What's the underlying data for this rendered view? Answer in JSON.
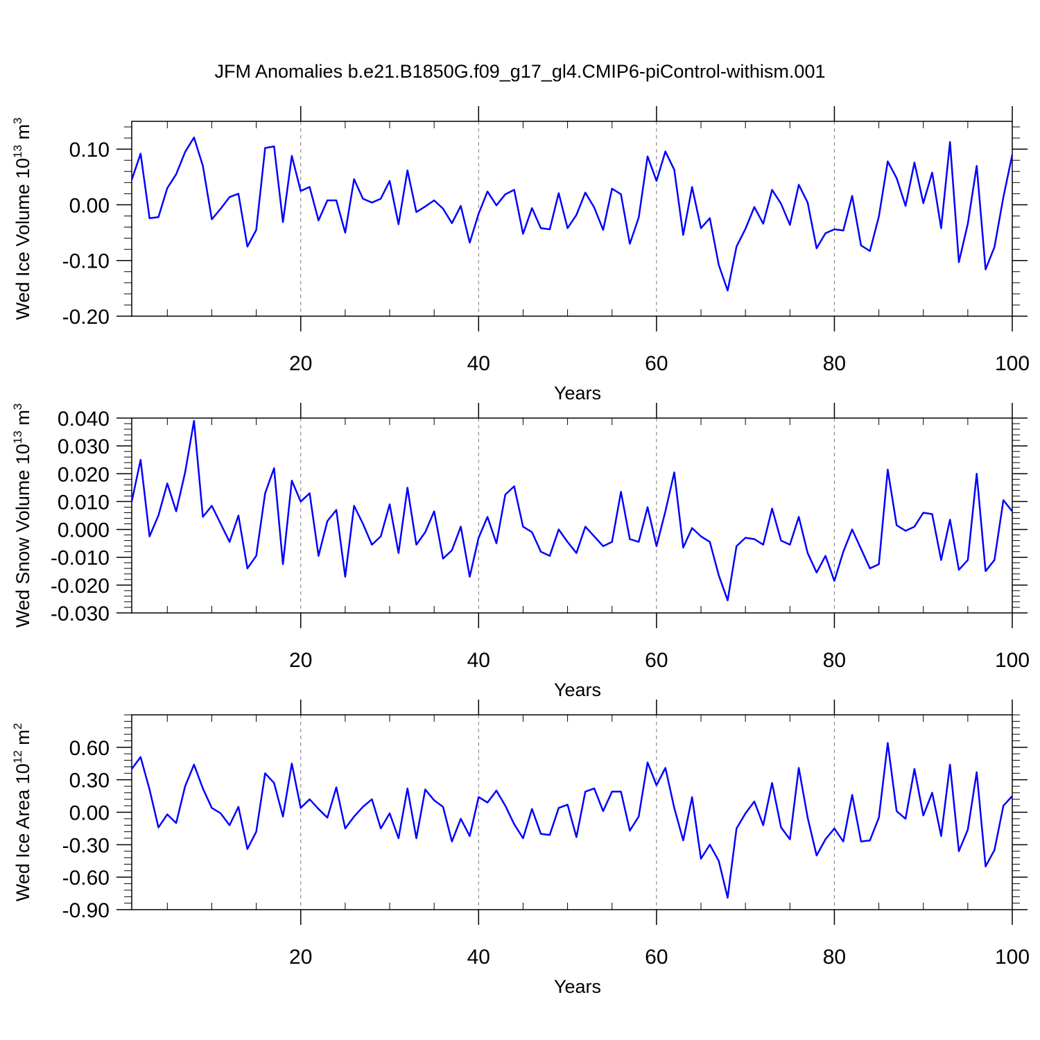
{
  "figure": {
    "title": "JFM Anomalies b.e21.B1850G.f09_g17_gl4.CMIP6-piControl-withism.001"
  },
  "chart_data": [
    {
      "type": "line",
      "xlabel": "Years",
      "ylabel": {
        "pre": "Wed Ice Volume 10",
        "exp": "13",
        "mid": " m",
        "unit_exp": "3"
      },
      "xlim": [
        1,
        100
      ],
      "ylim": [
        -0.2,
        0.15
      ],
      "xticks": [
        20,
        40,
        60,
        80,
        100
      ],
      "xtick_labels": [
        "20",
        "40",
        "60",
        "80",
        "100"
      ],
      "yticks": [
        -0.2,
        -0.1,
        0.0,
        0.1
      ],
      "ytick_labels": [
        "-0.20",
        "-0.10",
        "0.00",
        "0.10"
      ],
      "grid": "vertical dashed at x ticks",
      "line_color": "#0000ff",
      "x": [
        1,
        2,
        3,
        4,
        5,
        6,
        7,
        8,
        9,
        10,
        11,
        12,
        13,
        14,
        15,
        16,
        17,
        18,
        19,
        20,
        21,
        22,
        23,
        24,
        25,
        26,
        27,
        28,
        29,
        30,
        31,
        32,
        33,
        34,
        35,
        36,
        37,
        38,
        39,
        40,
        41,
        42,
        43,
        44,
        45,
        46,
        47,
        48,
        49,
        50,
        51,
        52,
        53,
        54,
        55,
        56,
        57,
        58,
        59,
        60,
        61,
        62,
        63,
        64,
        65,
        66,
        67,
        68,
        69,
        70,
        71,
        72,
        73,
        74,
        75,
        76,
        77,
        78,
        79,
        80,
        81,
        82,
        83,
        84,
        85,
        86,
        87,
        88,
        89,
        90,
        91,
        92,
        93,
        94,
        95,
        96,
        97,
        98,
        99,
        100
      ],
      "values": [
        0.045,
        0.092,
        -0.024,
        -0.022,
        0.03,
        0.055,
        0.095,
        0.121,
        0.07,
        -0.026,
        -0.007,
        0.014,
        0.02,
        -0.075,
        -0.045,
        0.102,
        0.105,
        -0.031,
        0.088,
        0.025,
        0.032,
        -0.028,
        0.008,
        0.008,
        -0.05,
        0.046,
        0.011,
        0.004,
        0.011,
        0.043,
        -0.035,
        0.062,
        -0.013,
        -0.003,
        0.008,
        -0.007,
        -0.033,
        -0.002,
        -0.068,
        -0.016,
        0.024,
        -0.001,
        0.019,
        0.027,
        -0.052,
        -0.006,
        -0.042,
        -0.044,
        0.021,
        -0.042,
        -0.018,
        0.022,
        -0.005,
        -0.045,
        0.029,
        0.019,
        -0.07,
        -0.023,
        0.087,
        0.043,
        0.096,
        0.063,
        -0.054,
        0.032,
        -0.042,
        -0.024,
        -0.108,
        -0.154,
        -0.075,
        -0.043,
        -0.004,
        -0.034,
        0.027,
        0.002,
        -0.036,
        0.036,
        0.004,
        -0.078,
        -0.051,
        -0.044,
        -0.046,
        0.016,
        -0.073,
        -0.083,
        -0.021,
        0.078,
        0.048,
        -0.002,
        0.076,
        0.003,
        0.058,
        -0.042,
        0.113,
        -0.103,
        -0.034,
        0.07,
        -0.116,
        -0.076,
        0.014,
        0.09
      ]
    },
    {
      "type": "line",
      "xlabel": "Years",
      "ylabel": {
        "pre": "Wed Snow Volume 10",
        "exp": "13",
        "mid": " m",
        "unit_exp": "3"
      },
      "xlim": [
        1,
        100
      ],
      "ylim": [
        -0.03,
        0.04
      ],
      "xticks": [
        20,
        40,
        60,
        80,
        100
      ],
      "xtick_labels": [
        "20",
        "40",
        "60",
        "80",
        "100"
      ],
      "yticks": [
        -0.03,
        -0.02,
        -0.01,
        0.0,
        0.01,
        0.02,
        0.03,
        0.04
      ],
      "ytick_labels": [
        "-0.030",
        "-0.020",
        "-0.010",
        "0.000",
        "0.010",
        "0.020",
        "0.030",
        "0.040"
      ],
      "grid": "vertical dashed at x ticks",
      "line_color": "#0000ff",
      "x": [
        1,
        2,
        3,
        4,
        5,
        6,
        7,
        8,
        9,
        10,
        11,
        12,
        13,
        14,
        15,
        16,
        17,
        18,
        19,
        20,
        21,
        22,
        23,
        24,
        25,
        26,
        27,
        28,
        29,
        30,
        31,
        32,
        33,
        34,
        35,
        36,
        37,
        38,
        39,
        40,
        41,
        42,
        43,
        44,
        45,
        46,
        47,
        48,
        49,
        50,
        51,
        52,
        53,
        54,
        55,
        56,
        57,
        58,
        59,
        60,
        61,
        62,
        63,
        64,
        65,
        66,
        67,
        68,
        69,
        70,
        71,
        72,
        73,
        74,
        75,
        76,
        77,
        78,
        79,
        80,
        81,
        82,
        83,
        84,
        85,
        86,
        87,
        88,
        89,
        90,
        91,
        92,
        93,
        94,
        95,
        96,
        97,
        98,
        99,
        100
      ],
      "values": [
        0.01,
        0.025,
        -0.0025,
        0.005,
        0.0165,
        0.0065,
        0.0205,
        0.039,
        0.0045,
        0.0085,
        0.002,
        -0.0045,
        0.005,
        -0.014,
        -0.0095,
        0.013,
        0.022,
        -0.0125,
        0.0175,
        0.01,
        0.013,
        -0.0095,
        0.003,
        0.007,
        -0.017,
        0.0085,
        0.002,
        -0.0055,
        -0.0025,
        0.009,
        -0.0085,
        0.015,
        -0.0055,
        -0.001,
        0.0065,
        -0.0105,
        -0.0075,
        0.001,
        -0.017,
        -0.003,
        0.0045,
        -0.005,
        0.0125,
        0.0155,
        0.001,
        -0.001,
        -0.008,
        -0.0095,
        0.0,
        -0.0045,
        -0.0085,
        0.001,
        -0.0025,
        -0.006,
        -0.0045,
        0.0135,
        -0.0035,
        -0.0045,
        0.008,
        -0.006,
        0.0065,
        0.0205,
        -0.0065,
        0.0005,
        -0.0025,
        -0.0045,
        -0.0165,
        -0.0255,
        -0.006,
        -0.003,
        -0.0035,
        -0.0055,
        0.0075,
        -0.004,
        -0.0055,
        0.0045,
        -0.0085,
        -0.0155,
        -0.0095,
        -0.0185,
        -0.008,
        0.0,
        -0.007,
        -0.014,
        -0.0125,
        0.0215,
        0.0015,
        -0.0005,
        0.001,
        0.006,
        0.0055,
        -0.011,
        0.0035,
        -0.0145,
        -0.011,
        0.02,
        -0.015,
        -0.011,
        0.0105,
        0.0065
      ]
    },
    {
      "type": "line",
      "xlabel": "Years",
      "ylabel": {
        "pre": "Wed Ice Area 10",
        "exp": "12",
        "mid": " m",
        "unit_exp": "2"
      },
      "xlim": [
        1,
        100
      ],
      "ylim": [
        -0.9,
        0.9
      ],
      "xticks": [
        20,
        40,
        60,
        80,
        100
      ],
      "xtick_labels": [
        "20",
        "40",
        "60",
        "80",
        "100"
      ],
      "yticks": [
        -0.9,
        -0.6,
        -0.3,
        0.0,
        0.3,
        0.6
      ],
      "ytick_labels": [
        "-0.90",
        "-0.60",
        "-0.30",
        "0.00",
        "0.30",
        "0.60"
      ],
      "grid": "vertical dashed at x ticks",
      "line_color": "#0000ff",
      "x": [
        1,
        2,
        3,
        4,
        5,
        6,
        7,
        8,
        9,
        10,
        11,
        12,
        13,
        14,
        15,
        16,
        17,
        18,
        19,
        20,
        21,
        22,
        23,
        24,
        25,
        26,
        27,
        28,
        29,
        30,
        31,
        32,
        33,
        34,
        35,
        36,
        37,
        38,
        39,
        40,
        41,
        42,
        43,
        44,
        45,
        46,
        47,
        48,
        49,
        50,
        51,
        52,
        53,
        54,
        55,
        56,
        57,
        58,
        59,
        60,
        61,
        62,
        63,
        64,
        65,
        66,
        67,
        68,
        69,
        70,
        71,
        72,
        73,
        74,
        75,
        76,
        77,
        78,
        79,
        80,
        81,
        82,
        83,
        84,
        85,
        86,
        87,
        88,
        89,
        90,
        91,
        92,
        93,
        94,
        95,
        96,
        97,
        98,
        99,
        100
      ],
      "values": [
        0.4,
        0.51,
        0.21,
        -0.14,
        -0.02,
        -0.1,
        0.24,
        0.44,
        0.22,
        0.04,
        -0.01,
        -0.12,
        0.05,
        -0.34,
        -0.18,
        0.36,
        0.27,
        -0.04,
        0.45,
        0.04,
        0.12,
        0.03,
        -0.05,
        0.23,
        -0.15,
        -0.04,
        0.05,
        0.12,
        -0.15,
        -0.01,
        -0.24,
        0.22,
        -0.24,
        0.21,
        0.11,
        0.05,
        -0.27,
        -0.06,
        -0.22,
        0.14,
        0.09,
        0.2,
        0.06,
        -0.11,
        -0.24,
        0.03,
        -0.2,
        -0.21,
        0.04,
        0.07,
        -0.23,
        0.19,
        0.22,
        0.01,
        0.19,
        0.19,
        -0.17,
        -0.04,
        0.46,
        0.25,
        0.41,
        0.04,
        -0.26,
        0.14,
        -0.43,
        -0.3,
        -0.45,
        -0.79,
        -0.15,
        -0.01,
        0.1,
        -0.12,
        0.27,
        -0.14,
        -0.25,
        0.41,
        -0.05,
        -0.4,
        -0.25,
        -0.15,
        -0.27,
        0.16,
        -0.27,
        -0.26,
        -0.05,
        0.64,
        0.01,
        -0.06,
        0.4,
        -0.03,
        0.18,
        -0.22,
        0.44,
        -0.36,
        -0.16,
        0.37,
        -0.5,
        -0.35,
        0.06,
        0.15
      ]
    }
  ]
}
